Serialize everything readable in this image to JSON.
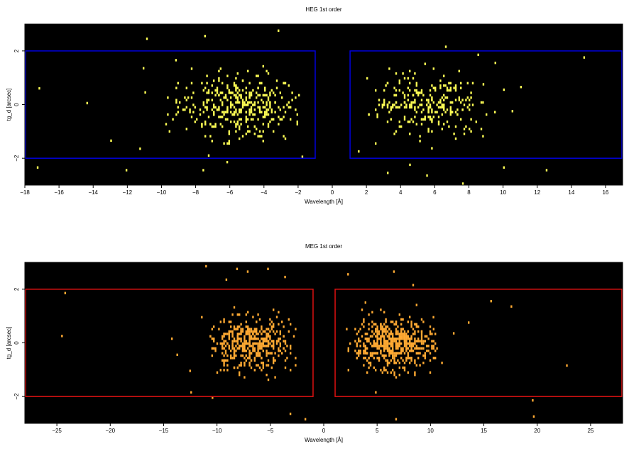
{
  "chart_data": [
    {
      "type": "heatmap",
      "title": "HEG 1st order",
      "xlabel": "Wavelength [Å]",
      "ylabel": "tg_d [arcsec]",
      "xlim": [
        -18,
        17
      ],
      "ylim": [
        -3,
        3
      ],
      "xticks": [
        -18,
        -16,
        -14,
        -12,
        -10,
        -8,
        -6,
        -4,
        -2,
        0,
        2,
        4,
        6,
        8,
        10,
        12,
        14,
        16
      ],
      "yticks": [
        -2,
        0,
        2
      ],
      "xtick_labels": [
        "−18",
        "−16",
        "−14",
        "−12",
        "−10",
        "−8",
        "−6",
        "−4",
        "−2",
        "0",
        "2",
        "4",
        "6",
        "8",
        "10",
        "12",
        "14",
        "16"
      ],
      "ytick_labels": [
        "−2",
        "0",
        "2"
      ],
      "event_color": "#ffff55",
      "background_color": "#000000",
      "region_color": "#0000dd",
      "regions": [
        {
          "x0": -18,
          "x1": -1,
          "y0": -2,
          "y1": 2
        },
        {
          "x0": 1,
          "x1": 17,
          "y0": -2,
          "y1": 2
        }
      ],
      "clusters": [
        {
          "xmin": -10,
          "xmax": -2,
          "center": -5.5,
          "sigma_y": 0.55,
          "count": 360
        },
        {
          "xmin": 2,
          "xmax": 9.5,
          "center": 5.5,
          "sigma_y": 0.55,
          "count": 260
        }
      ],
      "scatter_points": [
        [
          -17.2,
          0.65
        ],
        [
          -17.3,
          -2.3
        ],
        [
          -14.4,
          0.1
        ],
        [
          -13.0,
          -1.3
        ],
        [
          -12.1,
          -2.4
        ],
        [
          -11.3,
          -1.6
        ],
        [
          -11.1,
          1.4
        ],
        [
          -11.0,
          0.5
        ],
        [
          -10.9,
          2.5
        ],
        [
          -9.2,
          1.7
        ],
        [
          -7.5,
          2.6
        ],
        [
          -7.6,
          -2.4
        ],
        [
          -6.2,
          -2.1
        ],
        [
          -3.2,
          2.8
        ],
        [
          -1.8,
          -1.9
        ],
        [
          4.5,
          -2.2
        ],
        [
          5.5,
          -2.6
        ],
        [
          6.6,
          2.2
        ],
        [
          7.6,
          -2.9
        ],
        [
          8.5,
          1.9
        ],
        [
          10.0,
          0.6
        ],
        [
          10.5,
          -0.2
        ],
        [
          10.0,
          -2.3
        ],
        [
          12.5,
          -2.4
        ],
        [
          11.0,
          0.7
        ],
        [
          14.7,
          1.8
        ],
        [
          3.2,
          -2.5
        ],
        [
          8.8,
          0.8
        ],
        [
          9.5,
          1.6
        ],
        [
          1.5,
          -1.7
        ]
      ]
    },
    {
      "type": "heatmap",
      "title": "MEG 1st order",
      "xlabel": "Wavelength [Å]",
      "ylabel": "tg_d [arcsec]",
      "xlim": [
        -28,
        28
      ],
      "ylim": [
        -3,
        3
      ],
      "xticks": [
        -25,
        -20,
        -15,
        -10,
        -5,
        0,
        5,
        10,
        15,
        20,
        25
      ],
      "yticks": [
        -2,
        0,
        2
      ],
      "xtick_labels": [
        "−25",
        "−20",
        "−15",
        "−10",
        "−5",
        "0",
        "5",
        "10",
        "15",
        "20",
        "25"
      ],
      "ytick_labels": [
        "−2",
        "0",
        "2"
      ],
      "event_color": "#ffaa33",
      "background_color": "#000000",
      "region_color": "#dd1111",
      "regions": [
        {
          "x0": -28,
          "x1": -1,
          "y0": -2,
          "y1": 2
        },
        {
          "x0": 1,
          "x1": 28,
          "y0": -2,
          "y1": 2
        }
      ],
      "clusters": [
        {
          "xmin": -11,
          "xmax": -2.5,
          "center": -6.8,
          "sigma_y": 0.5,
          "count": 420
        },
        {
          "xmin": 2,
          "xmax": 10.5,
          "center": 6.3,
          "sigma_y": 0.45,
          "count": 520
        }
      ],
      "scatter_points": [
        [
          -24.3,
          1.9
        ],
        [
          -24.6,
          0.3
        ],
        [
          -14.3,
          0.2
        ],
        [
          -13.8,
          -0.4
        ],
        [
          -12.6,
          -1.0
        ],
        [
          -12.5,
          -1.8
        ],
        [
          -11.5,
          1.0
        ],
        [
          -11.1,
          2.9
        ],
        [
          -9.2,
          2.4
        ],
        [
          -8.2,
          2.8
        ],
        [
          -7.2,
          2.7
        ],
        [
          -5.3,
          2.8
        ],
        [
          -3.7,
          2.5
        ],
        [
          -3.2,
          -2.6
        ],
        [
          -1.8,
          -2.8
        ],
        [
          2.2,
          2.6
        ],
        [
          4.8,
          -1.8
        ],
        [
          6.5,
          2.7
        ],
        [
          6.7,
          -2.8
        ],
        [
          8.3,
          2.2
        ],
        [
          11.0,
          -0.7
        ],
        [
          13.5,
          0.8
        ],
        [
          15.6,
          1.6
        ],
        [
          17.5,
          1.4
        ],
        [
          19.5,
          -2.1
        ],
        [
          19.6,
          -2.7
        ],
        [
          22.7,
          -0.8
        ],
        [
          10.2,
          1.0
        ],
        [
          12.1,
          0.4
        ],
        [
          -10.5,
          -2.0
        ]
      ]
    }
  ]
}
